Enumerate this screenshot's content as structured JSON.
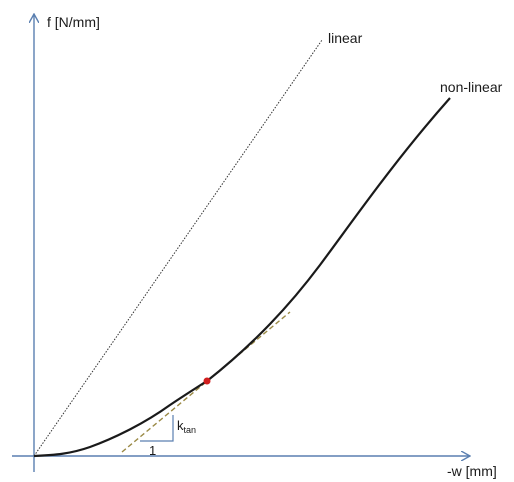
{
  "diagram": {
    "y_axis_label": "f [N/mm]",
    "x_axis_label": "-w [mm]",
    "linear_label": "linear",
    "nonlinear_label": "non-linear",
    "k_label": "k",
    "k_subscript": "tan",
    "slope_run_label": "1"
  },
  "colors": {
    "axis": "#5a7fb0",
    "curve": "#1a1a1a",
    "linear_line": "#333333",
    "tangent": "#9b8a46",
    "point": "#d11f1f",
    "triangle": "#5a7fb0"
  }
}
